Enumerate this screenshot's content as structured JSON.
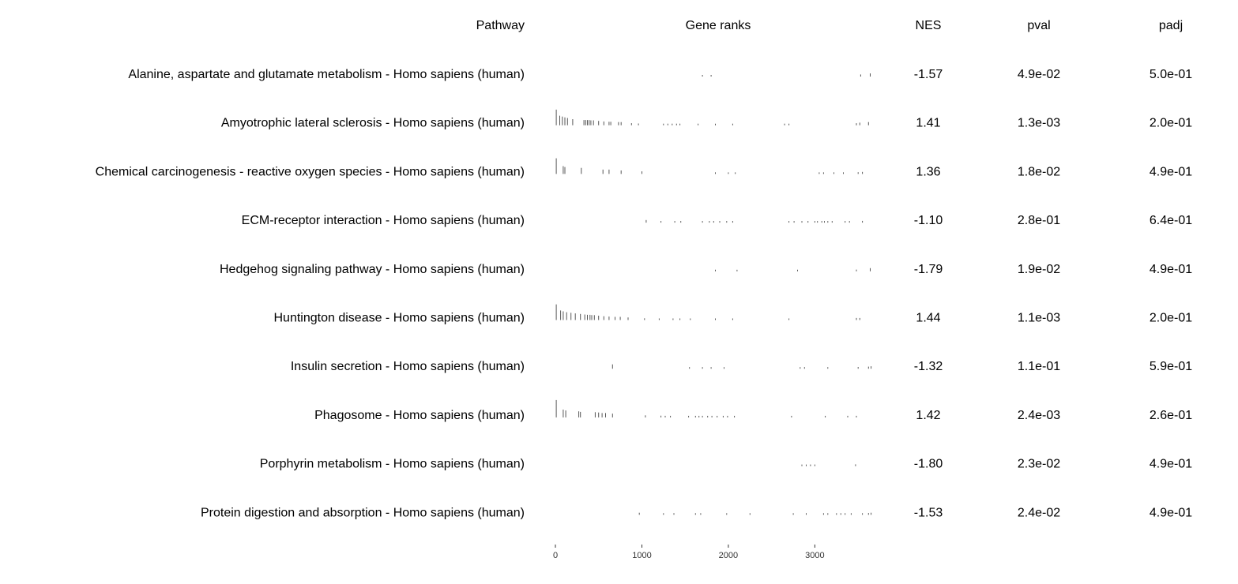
{
  "chart_data": {
    "type": "table",
    "columns": [
      "Pathway",
      "Gene ranks",
      "NES",
      "pval",
      "padj"
    ],
    "x_axis": {
      "range": [
        0,
        3800
      ],
      "ticks": [
        0,
        1000,
        2000,
        3000
      ],
      "tick_labels": [
        "0",
        "1000",
        "2000",
        "3000"
      ]
    },
    "rows": [
      {
        "pathway": "Alanine, aspartate and glutamate metabolism - Homo sapiens (human)",
        "nes": "-1.57",
        "pval": "4.9e-02",
        "padj": "5.0e-01",
        "ranks": [
          [
            1700,
            0.05
          ],
          [
            1800,
            0.05
          ],
          [
            3530,
            0.12
          ],
          [
            3640,
            0.18
          ]
        ]
      },
      {
        "pathway": "Amyotrophic lateral sclerosis - Homo sapiens (human)",
        "nes": "1.41",
        "pval": "1.3e-03",
        "padj": "2.0e-01",
        "ranks": [
          [
            10,
            0.9
          ],
          [
            50,
            0.55
          ],
          [
            80,
            0.5
          ],
          [
            110,
            0.45
          ],
          [
            140,
            0.42
          ],
          [
            200,
            0.35
          ],
          [
            330,
            0.3
          ],
          [
            350,
            0.3
          ],
          [
            370,
            0.3
          ],
          [
            390,
            0.3
          ],
          [
            410,
            0.28
          ],
          [
            440,
            0.28
          ],
          [
            500,
            0.25
          ],
          [
            560,
            0.22
          ],
          [
            620,
            0.2
          ],
          [
            640,
            0.2
          ],
          [
            730,
            0.18
          ],
          [
            760,
            0.18
          ],
          [
            880,
            0.12
          ],
          [
            960,
            0.1
          ],
          [
            1250,
            0.05
          ],
          [
            1300,
            0.05
          ],
          [
            1350,
            0.04
          ],
          [
            1400,
            0.04
          ],
          [
            1440,
            0.04
          ],
          [
            1650,
            0.03
          ],
          [
            1850,
            0.02
          ],
          [
            2050,
            0.02
          ],
          [
            2650,
            0.02
          ],
          [
            2700,
            0.02
          ],
          [
            3480,
            0.12
          ],
          [
            3520,
            0.15
          ],
          [
            3620,
            0.18
          ]
        ]
      },
      {
        "pathway": "Chemical carcinogenesis - reactive oxygen species - Homo sapiens (human)",
        "nes": "1.36",
        "pval": "1.8e-02",
        "padj": "4.9e-01",
        "ranks": [
          [
            10,
            0.9
          ],
          [
            90,
            0.45
          ],
          [
            110,
            0.4
          ],
          [
            300,
            0.35
          ],
          [
            550,
            0.25
          ],
          [
            620,
            0.25
          ],
          [
            760,
            0.2
          ],
          [
            1000,
            0.15
          ],
          [
            1850,
            0.05
          ],
          [
            2000,
            0.03
          ],
          [
            2080,
            0.03
          ],
          [
            3050,
            0.05
          ],
          [
            3100,
            0.05
          ],
          [
            3220,
            0.05
          ],
          [
            3330,
            0.05
          ],
          [
            3500,
            0.1
          ],
          [
            3550,
            0.12
          ]
        ]
      },
      {
        "pathway": "ECM-receptor interaction - Homo sapiens (human)",
        "nes": "-1.10",
        "pval": "2.8e-01",
        "padj": "6.4e-01",
        "ranks": [
          [
            1050,
            0.15
          ],
          [
            1220,
            0.08
          ],
          [
            1380,
            0.06
          ],
          [
            1450,
            0.06
          ],
          [
            1700,
            0.04
          ],
          [
            1780,
            0.04
          ],
          [
            1830,
            0.04
          ],
          [
            1900,
            0.04
          ],
          [
            1980,
            0.04
          ],
          [
            2050,
            0.04
          ],
          [
            2700,
            0.04
          ],
          [
            2760,
            0.04
          ],
          [
            2850,
            0.04
          ],
          [
            2920,
            0.04
          ],
          [
            3000,
            0.04
          ],
          [
            3030,
            0.04
          ],
          [
            3080,
            0.04
          ],
          [
            3110,
            0.04
          ],
          [
            3150,
            0.04
          ],
          [
            3200,
            0.04
          ],
          [
            3350,
            0.06
          ],
          [
            3400,
            0.06
          ],
          [
            3550,
            0.1
          ]
        ]
      },
      {
        "pathway": "Hedgehog signaling pathway - Homo sapiens (human)",
        "nes": "-1.79",
        "pval": "1.9e-02",
        "padj": "4.9e-01",
        "ranks": [
          [
            1850,
            0.03
          ],
          [
            2100,
            0.03
          ],
          [
            2800,
            0.03
          ],
          [
            3480,
            0.1
          ],
          [
            3640,
            0.18
          ]
        ]
      },
      {
        "pathway": "Huntington disease - Homo sapiens (human)",
        "nes": "1.44",
        "pval": "1.1e-03",
        "padj": "2.0e-01",
        "ranks": [
          [
            10,
            0.9
          ],
          [
            60,
            0.55
          ],
          [
            90,
            0.5
          ],
          [
            130,
            0.45
          ],
          [
            180,
            0.42
          ],
          [
            230,
            0.38
          ],
          [
            290,
            0.35
          ],
          [
            340,
            0.32
          ],
          [
            370,
            0.3
          ],
          [
            400,
            0.3
          ],
          [
            420,
            0.28
          ],
          [
            450,
            0.28
          ],
          [
            500,
            0.25
          ],
          [
            560,
            0.22
          ],
          [
            620,
            0.2
          ],
          [
            690,
            0.18
          ],
          [
            750,
            0.18
          ],
          [
            840,
            0.15
          ],
          [
            1030,
            0.1
          ],
          [
            1200,
            0.08
          ],
          [
            1360,
            0.06
          ],
          [
            1440,
            0.05
          ],
          [
            1560,
            0.05
          ],
          [
            1850,
            0.03
          ],
          [
            2050,
            0.02
          ],
          [
            2700,
            0.02
          ],
          [
            3480,
            0.12
          ],
          [
            3520,
            0.12
          ]
        ]
      },
      {
        "pathway": "Insulin secretion - Homo sapiens (human)",
        "nes": "-1.32",
        "pval": "1.1e-01",
        "padj": "5.9e-01",
        "ranks": [
          [
            660,
            0.25
          ],
          [
            1550,
            0.05
          ],
          [
            1700,
            0.05
          ],
          [
            1800,
            0.04
          ],
          [
            1950,
            0.04
          ],
          [
            2830,
            0.04
          ],
          [
            2880,
            0.04
          ],
          [
            3150,
            0.05
          ],
          [
            3500,
            0.1
          ],
          [
            3620,
            0.12
          ],
          [
            3650,
            0.14
          ]
        ]
      },
      {
        "pathway": "Phagosome - Homo sapiens (human)",
        "nes": "1.42",
        "pval": "2.4e-03",
        "padj": "2.6e-01",
        "ranks": [
          [
            10,
            1.0
          ],
          [
            90,
            0.45
          ],
          [
            120,
            0.4
          ],
          [
            270,
            0.35
          ],
          [
            290,
            0.32
          ],
          [
            460,
            0.3
          ],
          [
            500,
            0.28
          ],
          [
            540,
            0.25
          ],
          [
            580,
            0.25
          ],
          [
            660,
            0.22
          ],
          [
            1040,
            0.12
          ],
          [
            1220,
            0.1
          ],
          [
            1270,
            0.08
          ],
          [
            1330,
            0.08
          ],
          [
            1540,
            0.06
          ],
          [
            1620,
            0.06
          ],
          [
            1660,
            0.06
          ],
          [
            1700,
            0.06
          ],
          [
            1760,
            0.05
          ],
          [
            1810,
            0.05
          ],
          [
            1870,
            0.05
          ],
          [
            1940,
            0.05
          ],
          [
            1990,
            0.05
          ],
          [
            2070,
            0.05
          ],
          [
            2730,
            0.04
          ],
          [
            3120,
            0.05
          ],
          [
            3380,
            0.06
          ],
          [
            3480,
            0.06
          ]
        ]
      },
      {
        "pathway": "Porphyrin metabolism - Homo sapiens (human)",
        "nes": "-1.80",
        "pval": "2.3e-02",
        "padj": "4.9e-01",
        "ranks": [
          [
            2850,
            0.04
          ],
          [
            2900,
            0.04
          ],
          [
            2950,
            0.04
          ],
          [
            3000,
            0.04
          ],
          [
            3470,
            0.1
          ]
        ]
      },
      {
        "pathway": "Protein digestion and absorption - Homo sapiens (human)",
        "nes": "-1.53",
        "pval": "2.4e-02",
        "padj": "4.9e-01",
        "ranks": [
          [
            970,
            0.12
          ],
          [
            1250,
            0.08
          ],
          [
            1370,
            0.06
          ],
          [
            1620,
            0.05
          ],
          [
            1680,
            0.04
          ],
          [
            1980,
            0.04
          ],
          [
            2250,
            0.04
          ],
          [
            2750,
            0.04
          ],
          [
            2900,
            0.04
          ],
          [
            3100,
            0.05
          ],
          [
            3150,
            0.05
          ],
          [
            3250,
            0.05
          ],
          [
            3300,
            0.05
          ],
          [
            3350,
            0.06
          ],
          [
            3420,
            0.06
          ],
          [
            3550,
            0.08
          ],
          [
            3620,
            0.1
          ],
          [
            3650,
            0.12
          ]
        ]
      }
    ]
  }
}
